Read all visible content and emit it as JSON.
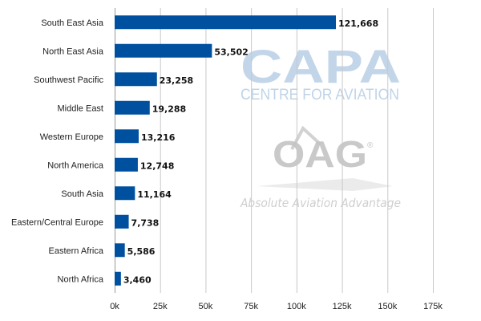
{
  "chart_data": {
    "type": "bar",
    "orientation": "horizontal",
    "categories": [
      "South East Asia",
      "North East Asia",
      "Southwest Pacific",
      "Middle East",
      "Western Europe",
      "North America",
      "South Asia",
      "Eastern/Central Europe",
      "Eastern Africa",
      "North Africa"
    ],
    "values": [
      121668,
      53502,
      23258,
      19288,
      13216,
      12748,
      11164,
      7738,
      5586,
      3460
    ],
    "value_labels": [
      "121,668",
      "53,502",
      "23,258",
      "19,288",
      "13,216",
      "12,748",
      "11,164",
      "7,738",
      "5,586",
      "3,460"
    ],
    "x_ticks": [
      {
        "value": 0,
        "label": "0k"
      },
      {
        "value": 25000,
        "label": "25k"
      },
      {
        "value": 50000,
        "label": "50k"
      },
      {
        "value": 75000,
        "label": "75k"
      },
      {
        "value": 100000,
        "label": "100k"
      },
      {
        "value": 125000,
        "label": "125k"
      },
      {
        "value": 150000,
        "label": "150k"
      },
      {
        "value": 175000,
        "label": "175k"
      }
    ],
    "xlim": [
      0,
      175000
    ],
    "title": "",
    "xlabel": "",
    "ylabel": "",
    "grid": "vertical",
    "legend": "none",
    "bar_color": "#0050a0",
    "grid_color": "#c8c8c8"
  },
  "watermarks": {
    "capa": {
      "text": "CAPA",
      "subtitle": "CENTRE FOR AVIATION"
    },
    "oag": {
      "text": "OAG",
      "registered_mark": "®",
      "tagline": "Absolute Aviation Advantage"
    }
  }
}
